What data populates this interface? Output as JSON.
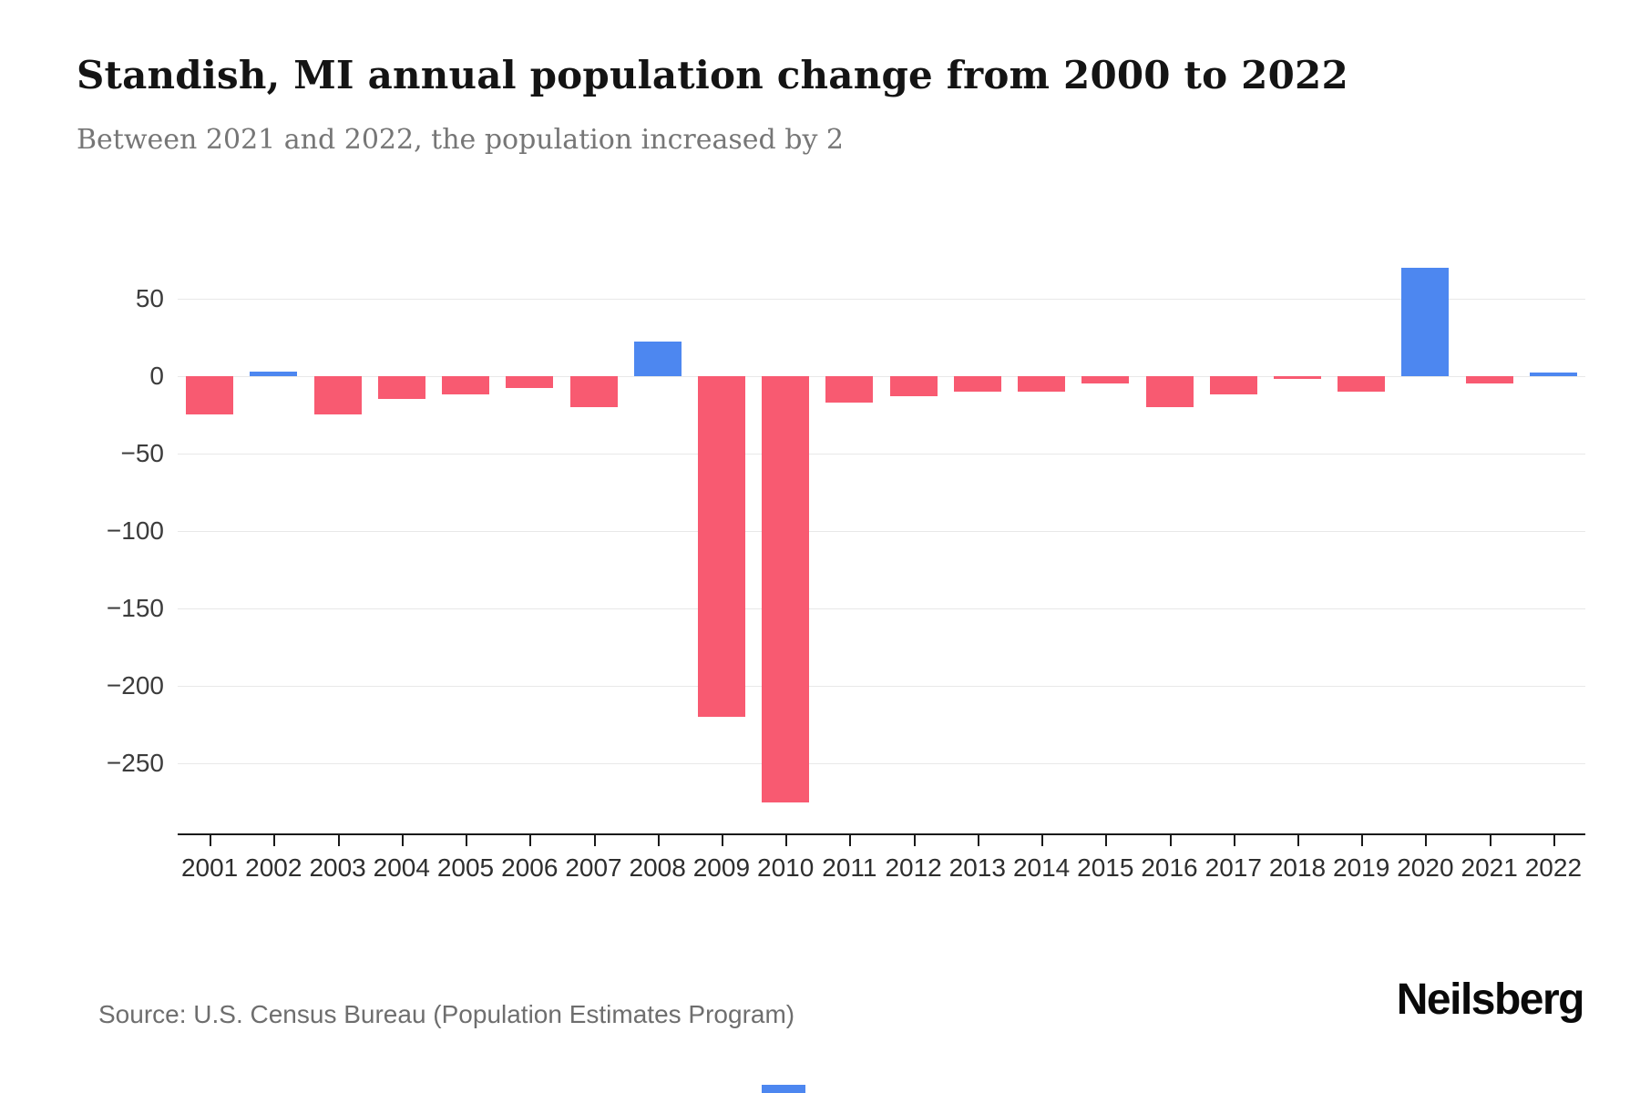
{
  "header": {
    "title": "Standish, MI annual population change from 2000 to 2022",
    "subtitle": "Between 2021 and 2022, the population increased by 2"
  },
  "footer": {
    "source": "Source: U.S. Census Bureau (Population Estimates Program)",
    "brand": "Neilsberg"
  },
  "chart_data": {
    "type": "bar",
    "title": "Standish, MI annual population change from 2000 to 2022",
    "subtitle": "Between 2021 and 2022, the population increased by 2",
    "categories": [
      "2001",
      "2002",
      "2003",
      "2004",
      "2005",
      "2006",
      "2007",
      "2008",
      "2009",
      "2010",
      "2011",
      "2012",
      "2013",
      "2014",
      "2015",
      "2016",
      "2017",
      "2018",
      "2019",
      "2020",
      "2021",
      "2022"
    ],
    "values": [
      -25,
      3,
      -25,
      -15,
      -12,
      -8,
      -20,
      22,
      -220,
      -275,
      -17,
      -13,
      -10,
      -10,
      -5,
      -20,
      -12,
      -2,
      -10,
      70,
      -5,
      2
    ],
    "xlabel": "",
    "ylabel": "",
    "ylim": [
      -295,
      85
    ],
    "yticks": [
      50,
      0,
      -50,
      -100,
      -150,
      -200,
      -250
    ],
    "grid": "horizontal",
    "legend": "none",
    "positive_color": "#4d87f0",
    "negative_color": "#f85a71",
    "grid_color": "#e8e8e8",
    "axis_color": "#1a1a1a"
  }
}
